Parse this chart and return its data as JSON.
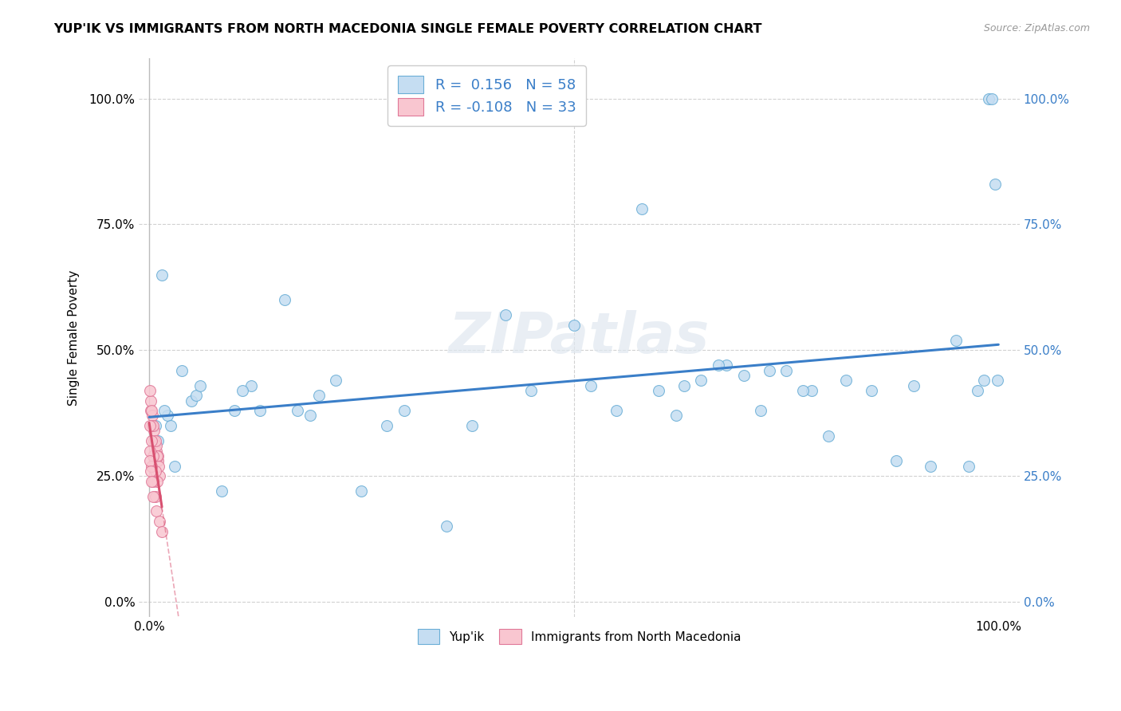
{
  "title": "YUP'IK VS IMMIGRANTS FROM NORTH MACEDONIA SINGLE FEMALE POVERTY CORRELATION CHART",
  "source": "Source: ZipAtlas.com",
  "ylabel": "Single Female Poverty",
  "legend1_R": " 0.156",
  "legend1_N": "58",
  "legend2_R": "-0.108",
  "legend2_N": "33",
  "blue_fill": "#c5ddf2",
  "blue_edge": "#6aaed6",
  "pink_fill": "#f9c6d0",
  "pink_edge": "#e07898",
  "line_blue_color": "#3a7ec8",
  "line_pink_color": "#d85070",
  "grid_color": "#cccccc",
  "bg_color": "#ffffff",
  "watermark": "ZIPatlas",
  "ytick_vals": [
    0.0,
    0.25,
    0.5,
    0.75,
    1.0
  ],
  "ytick_labels": [
    "0.0%",
    "25.0%",
    "50.0%",
    "75.0%",
    "100.0%"
  ],
  "xtick_vals": [
    0.0,
    1.0
  ],
  "xtick_labels": [
    "0.0%",
    "100.0%"
  ],
  "blue_x": [
    0.015,
    0.022,
    0.038,
    0.05,
    0.085,
    0.12,
    0.175,
    0.28,
    0.35,
    0.42,
    0.5,
    0.55,
    0.6,
    0.62,
    0.65,
    0.68,
    0.7,
    0.72,
    0.75,
    0.78,
    0.8,
    0.82,
    0.85,
    0.88,
    0.9,
    0.92,
    0.95,
    0.965,
    0.975,
    0.983,
    0.988,
    0.992,
    0.996,
    0.999,
    0.007,
    0.01,
    0.018,
    0.025,
    0.03,
    0.055,
    0.06,
    0.1,
    0.11,
    0.13,
    0.16,
    0.19,
    0.2,
    0.22,
    0.25,
    0.3,
    0.38,
    0.45,
    0.52,
    0.58,
    0.63,
    0.67,
    0.73,
    0.77
  ],
  "blue_y": [
    0.65,
    0.37,
    0.46,
    0.4,
    0.22,
    0.43,
    0.38,
    0.35,
    0.15,
    0.57,
    0.55,
    0.38,
    0.42,
    0.37,
    0.44,
    0.47,
    0.45,
    0.38,
    0.46,
    0.42,
    0.33,
    0.44,
    0.42,
    0.28,
    0.43,
    0.27,
    0.52,
    0.27,
    0.42,
    0.44,
    1.0,
    1.0,
    0.83,
    0.44,
    0.35,
    0.32,
    0.38,
    0.35,
    0.27,
    0.41,
    0.43,
    0.38,
    0.42,
    0.38,
    0.6,
    0.37,
    0.41,
    0.44,
    0.22,
    0.38,
    0.35,
    0.42,
    0.43,
    0.78,
    0.43,
    0.47,
    0.46,
    0.42
  ],
  "pink_x": [
    0.002,
    0.004,
    0.006,
    0.008,
    0.01,
    0.012,
    0.002,
    0.004,
    0.006,
    0.008,
    0.01,
    0.001,
    0.003,
    0.005,
    0.007,
    0.009,
    0.011,
    0.001,
    0.003,
    0.005,
    0.007,
    0.009,
    0.001,
    0.003,
    0.005,
    0.007,
    0.001,
    0.002,
    0.003,
    0.005,
    0.008,
    0.012,
    0.015
  ],
  "pink_y": [
    0.38,
    0.35,
    0.32,
    0.3,
    0.28,
    0.25,
    0.4,
    0.37,
    0.34,
    0.31,
    0.29,
    0.42,
    0.38,
    0.35,
    0.32,
    0.29,
    0.27,
    0.35,
    0.32,
    0.29,
    0.26,
    0.24,
    0.3,
    0.27,
    0.24,
    0.21,
    0.28,
    0.26,
    0.24,
    0.21,
    0.18,
    0.16,
    0.14
  ]
}
